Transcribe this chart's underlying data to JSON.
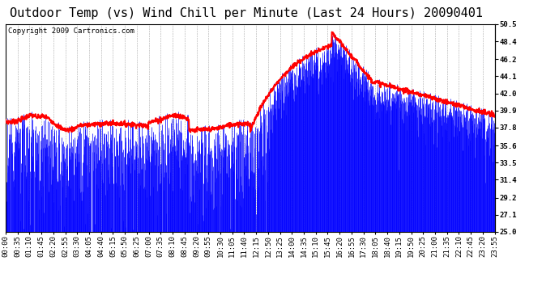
{
  "title": "Outdoor Temp (vs) Wind Chill per Minute (Last 24 Hours) 20090401",
  "copyright": "Copyright 2009 Cartronics.com",
  "background_color": "#ffffff",
  "plot_bg_color": "#ffffff",
  "ylim": [
    25.0,
    50.5
  ],
  "yticks": [
    25.0,
    27.1,
    29.2,
    31.4,
    33.5,
    35.6,
    37.8,
    39.9,
    42.0,
    44.1,
    46.2,
    48.4,
    50.5
  ],
  "xtick_labels": [
    "00:00",
    "00:35",
    "01:10",
    "01:45",
    "02:20",
    "02:55",
    "03:30",
    "04:05",
    "04:40",
    "05:15",
    "05:50",
    "06:25",
    "07:00",
    "07:35",
    "08:10",
    "08:45",
    "09:20",
    "09:55",
    "10:30",
    "11:05",
    "11:40",
    "12:15",
    "12:50",
    "13:25",
    "14:00",
    "14:35",
    "15:10",
    "15:45",
    "16:20",
    "16:55",
    "17:30",
    "18:05",
    "18:40",
    "19:15",
    "19:50",
    "20:25",
    "21:00",
    "21:35",
    "22:10",
    "22:45",
    "23:20",
    "23:55"
  ],
  "temp_color": "#ff0000",
  "windchill_color": "#0000ff",
  "grid_color": "#aaaaaa",
  "title_fontsize": 11,
  "copyright_fontsize": 6.5,
  "tick_fontsize": 6.5,
  "temp_linewidth": 1.5,
  "windchill_linewidth": 0.6
}
